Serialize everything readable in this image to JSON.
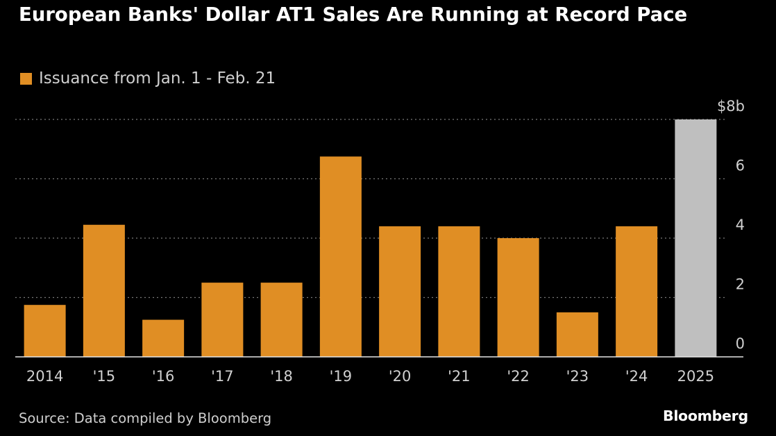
{
  "title": "European Banks' Dollar AT1 Sales Are Running at Record Pace",
  "legend": {
    "label": "Issuance from Jan. 1 - Feb. 21",
    "color": "#E08E24"
  },
  "source": "Source: Data compiled by Bloomberg",
  "brand": "Bloomberg",
  "colors": {
    "bar": "#E08E24",
    "highlight": "#BFBFBF",
    "grid": "#7a7a7a",
    "text": "#d0d0d0"
  },
  "chart_data": {
    "type": "bar",
    "categories": [
      "2014",
      "'15",
      "'16",
      "'17",
      "'18",
      "'19",
      "'20",
      "'21",
      "'22",
      "'23",
      "'24",
      "2025"
    ],
    "values": [
      1.75,
      4.45,
      1.25,
      2.5,
      2.5,
      6.75,
      4.4,
      4.4,
      4.0,
      1.5,
      4.4,
      8.0
    ],
    "series": [
      {
        "name": "Issuance from Jan. 1 - Feb. 21",
        "values": [
          1.75,
          4.45,
          1.25,
          2.5,
          2.5,
          6.75,
          4.4,
          4.4,
          4.0,
          1.5,
          4.4,
          8.0
        ]
      }
    ],
    "highlight_category": "2025",
    "ylim": [
      0,
      8
    ],
    "yticks": [
      0,
      2,
      4,
      6,
      8
    ],
    "ytick_labels": [
      "0",
      "2",
      "4",
      "6",
      "$8b"
    ],
    "y_axis_side": "right",
    "grid": true,
    "legend_position": "top-left",
    "xlabel": "",
    "ylabel": ""
  }
}
